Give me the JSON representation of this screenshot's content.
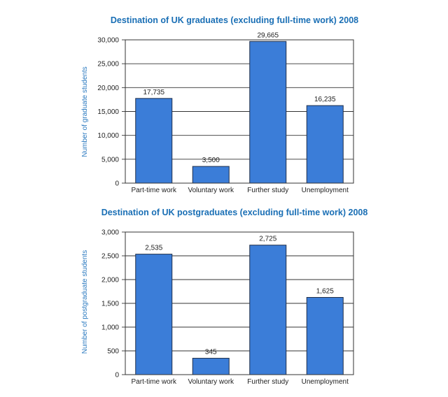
{
  "chart_data": [
    {
      "type": "bar",
      "title": "Destination of UK graduates (excluding full-time work) 2008",
      "xlabel": "",
      "ylabel": "Number of graduate students",
      "categories": [
        "Part-time work",
        "Voluntary work",
        "Further study",
        "Unemployment"
      ],
      "values": [
        17735,
        3500,
        29665,
        16235
      ],
      "value_labels": [
        "17,735",
        "3,500",
        "29,665",
        "16,235"
      ],
      "yticks": [
        "0",
        "5,000",
        "10,000",
        "15,000",
        "20,000",
        "25,000",
        "30,000"
      ],
      "ylim": [
        0,
        30000
      ],
      "grid": true,
      "bar_color": "#3b7dd8"
    },
    {
      "type": "bar",
      "title": "Destination of UK postgraduates (excluding full-time work) 2008",
      "xlabel": "",
      "ylabel": "Number of postgraduate students",
      "categories": [
        "Part-time work",
        "Voluntary work",
        "Further study",
        "Unemployment"
      ],
      "values": [
        2535,
        345,
        2725,
        1625
      ],
      "value_labels": [
        "2,535",
        "345",
        "2,725",
        "1,625"
      ],
      "yticks": [
        "0",
        "500",
        "1,000",
        "1,500",
        "2,000",
        "2,500",
        "3,000"
      ],
      "ylim": [
        0,
        3000
      ],
      "grid": true,
      "bar_color": "#3b7dd8"
    }
  ]
}
